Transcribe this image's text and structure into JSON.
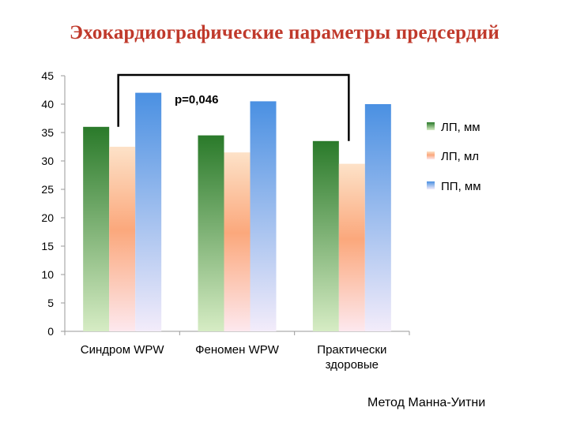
{
  "chart_data": {
    "type": "bar",
    "title": "Эхокардиографические параметры предсердий",
    "categories": [
      "Синдром WPW",
      "Феномен WPW",
      "Практически здоровые"
    ],
    "category_lines": [
      [
        "Синдром WPW"
      ],
      [
        "Феномен WPW"
      ],
      [
        "Практически",
        "здоровые"
      ]
    ],
    "series": [
      {
        "name": "ЛП, мм",
        "values": [
          36,
          34.5,
          33.5
        ],
        "color_top": "#2a7a2a",
        "color_bottom": "#d6ecc4"
      },
      {
        "name": "ЛП, мл",
        "values": [
          32.5,
          31.5,
          29.5
        ],
        "color_top": "#fde2c8",
        "color_mid": "#fba87c",
        "color_bottom": "#fde8ee"
      },
      {
        "name": "ПП, мм",
        "values": [
          42,
          40.5,
          40
        ],
        "color_top": "#4a90e2",
        "color_bottom": "#f3ecfa"
      }
    ],
    "ylim": [
      0,
      45
    ],
    "yticks": [
      0,
      5,
      10,
      15,
      20,
      25,
      30,
      35,
      40,
      45
    ],
    "xlabel": "",
    "ylabel": "",
    "grid": false,
    "legend_position": "right",
    "annotation": {
      "text": "p=0,046",
      "bracket_from_category": 0,
      "bracket_to_category": 2,
      "bracket_level": 45
    }
  },
  "caption": "Метод Манна-Уитни"
}
